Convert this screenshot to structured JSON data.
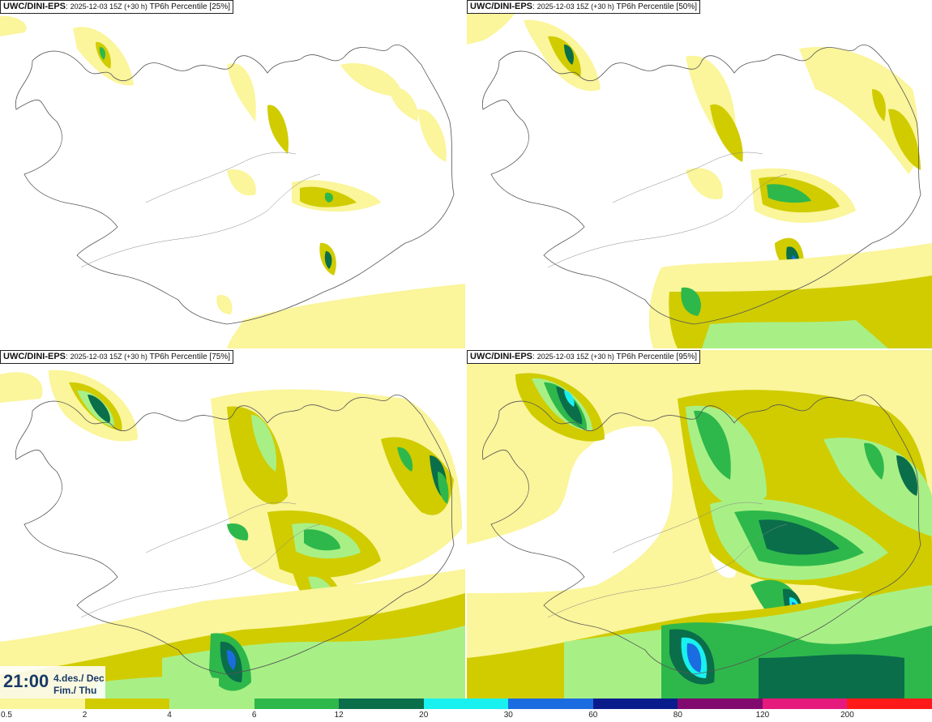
{
  "panels": [
    {
      "model": "UWC/DINI-EPS",
      "run": "2025-12-03 15Z (+30 h)",
      "product": "TP6h Percentile [25%]"
    },
    {
      "model": "UWC/DINI-EPS",
      "run": "2025-12-03 15Z (+30 h)",
      "product": "TP6h Percentile [50%]"
    },
    {
      "model": "UWC/DINI-EPS",
      "run": "2025-12-03 15Z (+30 h)",
      "product": "TP6h Percentile [75%]"
    },
    {
      "model": "UWC/DINI-EPS",
      "run": "2025-12-03 15Z (+30 h)",
      "product": "TP6h Percentile [95%]"
    }
  ],
  "valid_time": {
    "time": "21:00",
    "date_line1": "4.des./ Dec",
    "date_line2": "Fim./ Thu"
  },
  "legend": {
    "ticks": [
      "0.5",
      "2",
      "4",
      "6",
      "12",
      "20",
      "30",
      "60",
      "80",
      "120",
      "200"
    ],
    "colors": [
      "#fbf59b",
      "#d0cc00",
      "#a8f086",
      "#2eb84b",
      "#0a6e4a",
      "#19f0f0",
      "#1b6ce0",
      "#0a1c8c",
      "#800a6e",
      "#e6197d",
      "#ff1a1a"
    ]
  }
}
